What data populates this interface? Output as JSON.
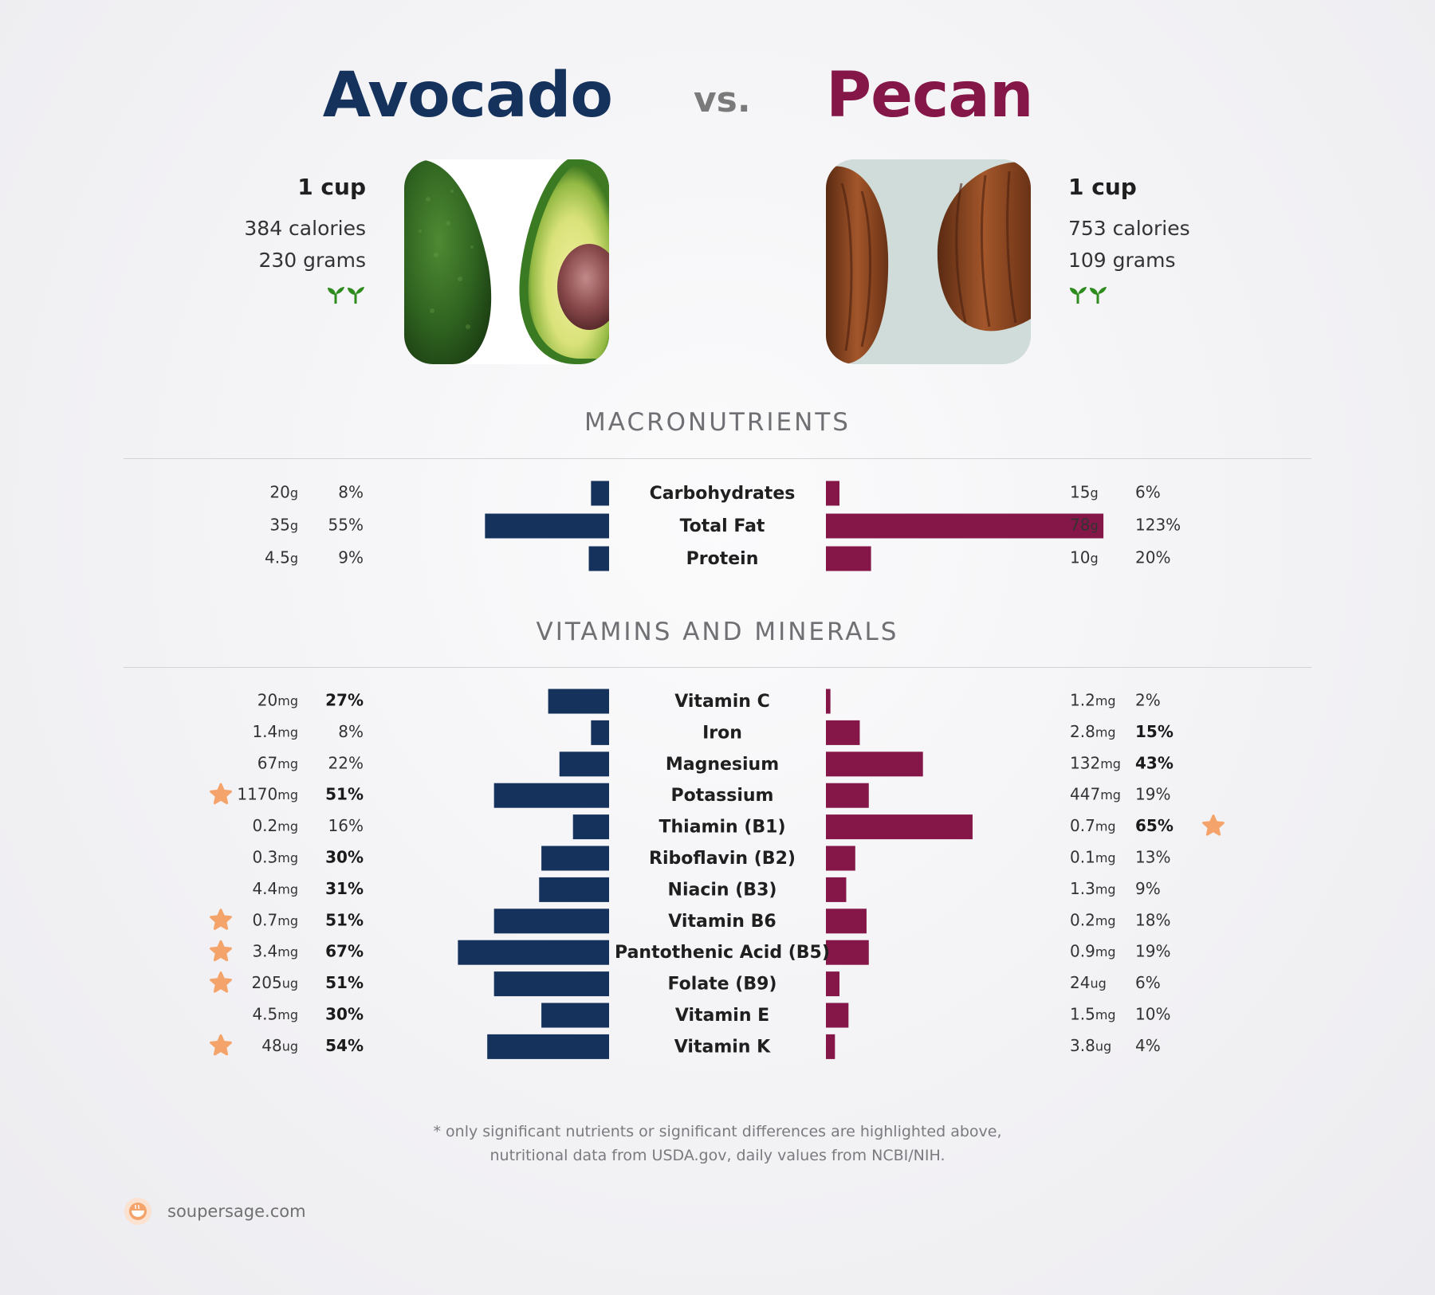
{
  "header": {
    "left_name": "Avocado",
    "vs_label": "vs.",
    "right_name": "Pecan"
  },
  "colors": {
    "left": "#15325c",
    "right": "#841748",
    "star": "#f4a46a",
    "sprout": "#2e8b1e"
  },
  "left_food": {
    "serving": "1 cup",
    "calories": "384 calories",
    "grams": "230 grams",
    "icons": [
      "sprout-icon",
      "sprout-icon"
    ]
  },
  "right_food": {
    "serving": "1 cup",
    "calories": "753 calories",
    "grams": "109 grams",
    "icons": [
      "sprout-icon",
      "sprout-icon"
    ]
  },
  "sections": {
    "macros_title": "MACRONUTRIENTS",
    "vitamins_title": "VITAMINS AND MINERALS"
  },
  "chart_data": [
    {
      "type": "bar",
      "orientation": "diverging-horizontal",
      "title": "MACRONUTRIENTS",
      "series": [
        {
          "name": "Avocado",
          "side": "left"
        },
        {
          "name": "Pecan",
          "side": "right"
        }
      ],
      "rows": [
        {
          "label": "Carbohydrates",
          "left": {
            "amount": "20",
            "unit": "g",
            "pct": 8,
            "bold": false,
            "star": false
          },
          "right": {
            "amount": "15",
            "unit": "g",
            "pct": 6,
            "bold": false,
            "star": false
          }
        },
        {
          "label": "Total Fat",
          "left": {
            "amount": "35",
            "unit": "g",
            "pct": 55,
            "bold": false,
            "star": false
          },
          "right": {
            "amount": "78",
            "unit": "g",
            "pct": 123,
            "bold": false,
            "star": false
          }
        },
        {
          "label": "Protein",
          "left": {
            "amount": "4.5",
            "unit": "g",
            "pct": 9,
            "bold": false,
            "star": false
          },
          "right": {
            "amount": "10",
            "unit": "g",
            "pct": 20,
            "bold": false,
            "star": false
          }
        }
      ]
    },
    {
      "type": "bar",
      "orientation": "diverging-horizontal",
      "title": "VITAMINS AND MINERALS",
      "series": [
        {
          "name": "Avocado",
          "side": "left"
        },
        {
          "name": "Pecan",
          "side": "right"
        }
      ],
      "rows": [
        {
          "label": "Vitamin C",
          "left": {
            "amount": "20",
            "unit": "mg",
            "pct": 27,
            "bold": true,
            "star": false
          },
          "right": {
            "amount": "1.2",
            "unit": "mg",
            "pct": 2,
            "bold": false,
            "star": false
          }
        },
        {
          "label": "Iron",
          "left": {
            "amount": "1.4",
            "unit": "mg",
            "pct": 8,
            "bold": false,
            "star": false
          },
          "right": {
            "amount": "2.8",
            "unit": "mg",
            "pct": 15,
            "bold": true,
            "star": false
          }
        },
        {
          "label": "Magnesium",
          "left": {
            "amount": "67",
            "unit": "mg",
            "pct": 22,
            "bold": false,
            "star": false
          },
          "right": {
            "amount": "132",
            "unit": "mg",
            "pct": 43,
            "bold": true,
            "star": false
          }
        },
        {
          "label": "Potassium",
          "left": {
            "amount": "1170",
            "unit": "mg",
            "pct": 51,
            "bold": true,
            "star": true
          },
          "right": {
            "amount": "447",
            "unit": "mg",
            "pct": 19,
            "bold": false,
            "star": false
          }
        },
        {
          "label": "Thiamin (B1)",
          "left": {
            "amount": "0.2",
            "unit": "mg",
            "pct": 16,
            "bold": false,
            "star": false
          },
          "right": {
            "amount": "0.7",
            "unit": "mg",
            "pct": 65,
            "bold": true,
            "star": true
          }
        },
        {
          "label": "Riboflavin (B2)",
          "left": {
            "amount": "0.3",
            "unit": "mg",
            "pct": 30,
            "bold": true,
            "star": false
          },
          "right": {
            "amount": "0.1",
            "unit": "mg",
            "pct": 13,
            "bold": false,
            "star": false
          }
        },
        {
          "label": "Niacin (B3)",
          "left": {
            "amount": "4.4",
            "unit": "mg",
            "pct": 31,
            "bold": true,
            "star": false
          },
          "right": {
            "amount": "1.3",
            "unit": "mg",
            "pct": 9,
            "bold": false,
            "star": false
          }
        },
        {
          "label": "Vitamin B6",
          "left": {
            "amount": "0.7",
            "unit": "mg",
            "pct": 51,
            "bold": true,
            "star": true
          },
          "right": {
            "amount": "0.2",
            "unit": "mg",
            "pct": 18,
            "bold": false,
            "star": false
          }
        },
        {
          "label": "Pantothenic Acid (B5)",
          "left": {
            "amount": "3.4",
            "unit": "mg",
            "pct": 67,
            "bold": true,
            "star": true
          },
          "right": {
            "amount": "0.9",
            "unit": "mg",
            "pct": 19,
            "bold": false,
            "star": false
          }
        },
        {
          "label": "Folate (B9)",
          "left": {
            "amount": "205",
            "unit": "ug",
            "pct": 51,
            "bold": true,
            "star": true
          },
          "right": {
            "amount": "24",
            "unit": "ug",
            "pct": 6,
            "bold": false,
            "star": false
          }
        },
        {
          "label": "Vitamin E",
          "left": {
            "amount": "4.5",
            "unit": "mg",
            "pct": 30,
            "bold": true,
            "star": false
          },
          "right": {
            "amount": "1.5",
            "unit": "mg",
            "pct": 10,
            "bold": false,
            "star": false
          }
        },
        {
          "label": "Vitamin K",
          "left": {
            "amount": "48",
            "unit": "ug",
            "pct": 54,
            "bold": true,
            "star": true
          },
          "right": {
            "amount": "3.8",
            "unit": "ug",
            "pct": 4,
            "bold": false,
            "star": false
          }
        }
      ]
    }
  ],
  "footnote": {
    "line1": "* only significant nutrients or significant differences are highlighted above,",
    "line2": "nutritional data from USDA.gov, daily values from NCBI/NIH."
  },
  "footer": {
    "site": "soupersage.com",
    "logo_icon": "soupersage-logo-icon"
  }
}
